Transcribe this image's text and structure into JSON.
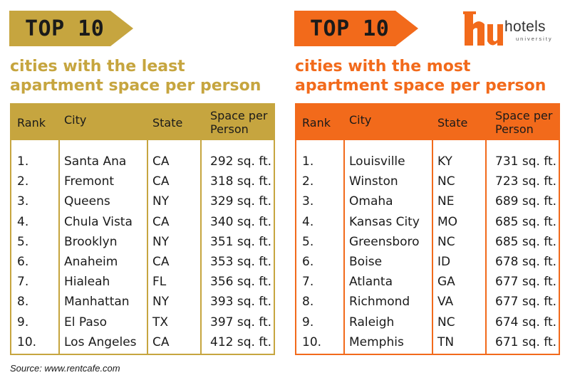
{
  "left": {
    "banner": "TOP 10",
    "subtitle_line1": "cities with the least",
    "subtitle_line2": "apartment space per person",
    "headers": {
      "rank": "Rank",
      "city": "City",
      "state": "State",
      "space": "Space per Person"
    },
    "rows": [
      {
        "rank": "1.",
        "city": "Santa Ana",
        "state": "CA",
        "space": "292 sq. ft."
      },
      {
        "rank": "2.",
        "city": "Fremont",
        "state": "CA",
        "space": "318 sq. ft."
      },
      {
        "rank": "3.",
        "city": "Queens",
        "state": "NY",
        "space": "329 sq. ft."
      },
      {
        "rank": "4.",
        "city": "Chula Vista",
        "state": "CA",
        "space": "340 sq. ft."
      },
      {
        "rank": "5.",
        "city": "Brooklyn",
        "state": "NY",
        "space": "351 sq. ft."
      },
      {
        "rank": "6.",
        "city": "Anaheim",
        "state": "CA",
        "space": "353 sq. ft."
      },
      {
        "rank": "7.",
        "city": "Hialeah",
        "state": "FL",
        "space": "356 sq. ft."
      },
      {
        "rank": "8.",
        "city": "Manhattan",
        "state": "NY",
        "space": "393 sq. ft."
      },
      {
        "rank": "9.",
        "city": "El Paso",
        "state": "TX",
        "space": "397 sq. ft."
      },
      {
        "rank": "10.",
        "city": "Los Angeles",
        "state": "CA",
        "space": "412 sq. ft."
      }
    ]
  },
  "right": {
    "banner": "TOP 10",
    "subtitle_line1": "cities with the most",
    "subtitle_line2": "apartment space per person",
    "headers": {
      "rank": "Rank",
      "city": "City",
      "state": "State",
      "space": "Space per Person"
    },
    "rows": [
      {
        "rank": "1.",
        "city": "Louisville",
        "state": "KY",
        "space": "731 sq. ft."
      },
      {
        "rank": "2.",
        "city": "Winston",
        "state": "NC",
        "space": "723 sq. ft."
      },
      {
        "rank": "3.",
        "city": "Omaha",
        "state": "NE",
        "space": "689 sq. ft."
      },
      {
        "rank": "4.",
        "city": "Kansas City",
        "state": "MO",
        "space": "685 sq. ft."
      },
      {
        "rank": "5.",
        "city": "Greensboro",
        "state": "NC",
        "space": "685 sq. ft."
      },
      {
        "rank": "6.",
        "city": "Boise",
        "state": "ID",
        "space": "678 sq. ft."
      },
      {
        "rank": "7.",
        "city": "Atlanta",
        "state": "GA",
        "space": "677 sq. ft."
      },
      {
        "rank": "8.",
        "city": "Richmond",
        "state": "VA",
        "space": "677 sq. ft."
      },
      {
        "rank": "9.",
        "city": "Raleigh",
        "state": "NC",
        "space": "674 sq. ft."
      },
      {
        "rank": "10.",
        "city": "Memphis",
        "state": "TN",
        "space": "671 sq. ft."
      }
    ]
  },
  "logo": {
    "text": "hotels",
    "sub": "university",
    "icon": "hu-logo-icon"
  },
  "source": "Source: www.rentcafe.com",
  "colors": {
    "gold": "#c6a53f",
    "orange": "#f26a1b"
  }
}
